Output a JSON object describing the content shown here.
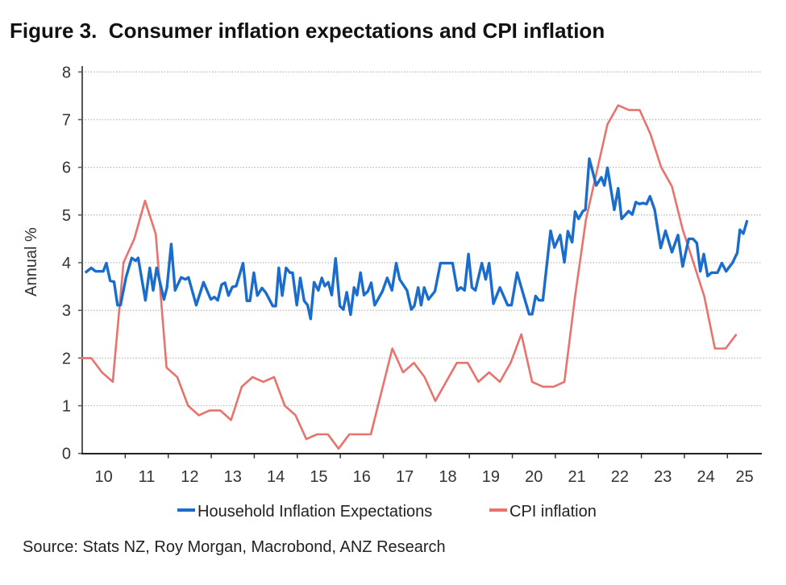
{
  "chart_data": {
    "type": "line",
    "title": "Figure 3.  Consumer inflation expectations and CPI inflation",
    "xlabel": "",
    "ylabel": "Annual %",
    "xlim": [
      2010,
      2025.8
    ],
    "ylim": [
      0,
      8
    ],
    "yticks": [
      0,
      1,
      2,
      3,
      4,
      5,
      6,
      7,
      8
    ],
    "xtick_labels": [
      "10",
      "11",
      "12",
      "13",
      "14",
      "15",
      "16",
      "17",
      "18",
      "19",
      "20",
      "21",
      "22",
      "23",
      "24",
      "25"
    ],
    "grid": "horizontal dotted",
    "legend_position": "bottom",
    "source": "Source: Stats NZ, Roy Morgan, Macrobond, ANZ Research",
    "series": [
      {
        "name": "Household Inflation Expectations",
        "color": "#1a6dcc",
        "points": [
          [
            2010.07,
            3.79
          ],
          [
            2010.21,
            3.89
          ],
          [
            2010.31,
            3.82
          ],
          [
            2010.49,
            3.82
          ],
          [
            2010.56,
            3.99
          ],
          [
            2010.65,
            3.62
          ],
          [
            2010.74,
            3.6
          ],
          [
            2010.82,
            3.11
          ],
          [
            2010.89,
            3.11
          ],
          [
            2011.02,
            3.7
          ],
          [
            2011.15,
            4.1
          ],
          [
            2011.24,
            4.04
          ],
          [
            2011.3,
            4.1
          ],
          [
            2011.47,
            3.21
          ],
          [
            2011.57,
            3.89
          ],
          [
            2011.65,
            3.42
          ],
          [
            2011.73,
            3.89
          ],
          [
            2011.9,
            3.23
          ],
          [
            2011.97,
            3.48
          ],
          [
            2012.07,
            4.39
          ],
          [
            2012.16,
            3.42
          ],
          [
            2012.3,
            3.69
          ],
          [
            2012.4,
            3.65
          ],
          [
            2012.47,
            3.69
          ],
          [
            2012.65,
            3.11
          ],
          [
            2012.82,
            3.59
          ],
          [
            2012.99,
            3.23
          ],
          [
            2013.07,
            3.28
          ],
          [
            2013.15,
            3.21
          ],
          [
            2013.24,
            3.54
          ],
          [
            2013.32,
            3.58
          ],
          [
            2013.4,
            3.31
          ],
          [
            2013.49,
            3.49
          ],
          [
            2013.58,
            3.51
          ],
          [
            2013.74,
            3.99
          ],
          [
            2013.83,
            3.2
          ],
          [
            2013.9,
            3.2
          ],
          [
            2013.99,
            3.79
          ],
          [
            2014.07,
            3.31
          ],
          [
            2014.18,
            3.47
          ],
          [
            2014.27,
            3.37
          ],
          [
            2014.43,
            3.09
          ],
          [
            2014.5,
            3.09
          ],
          [
            2014.57,
            3.89
          ],
          [
            2014.65,
            3.31
          ],
          [
            2014.74,
            3.89
          ],
          [
            2014.83,
            3.79
          ],
          [
            2014.89,
            3.79
          ],
          [
            2014.99,
            3.11
          ],
          [
            2015.07,
            3.68
          ],
          [
            2015.16,
            3.2
          ],
          [
            2015.24,
            3.11
          ],
          [
            2015.31,
            2.82
          ],
          [
            2015.39,
            3.59
          ],
          [
            2015.49,
            3.42
          ],
          [
            2015.57,
            3.68
          ],
          [
            2015.64,
            3.51
          ],
          [
            2015.72,
            3.59
          ],
          [
            2015.8,
            3.32
          ],
          [
            2015.89,
            4.09
          ],
          [
            2015.99,
            3.09
          ],
          [
            2016.07,
            3.02
          ],
          [
            2016.15,
            3.38
          ],
          [
            2016.24,
            2.91
          ],
          [
            2016.32,
            3.48
          ],
          [
            2016.39,
            3.32
          ],
          [
            2016.47,
            3.79
          ],
          [
            2016.55,
            3.32
          ],
          [
            2016.64,
            3.4
          ],
          [
            2016.72,
            3.58
          ],
          [
            2016.8,
            3.11
          ],
          [
            2016.98,
            3.4
          ],
          [
            2017.09,
            3.68
          ],
          [
            2017.2,
            3.42
          ],
          [
            2017.3,
            3.99
          ],
          [
            2017.38,
            3.65
          ],
          [
            2017.55,
            3.42
          ],
          [
            2017.65,
            3.02
          ],
          [
            2017.72,
            3.09
          ],
          [
            2017.81,
            3.48
          ],
          [
            2017.88,
            3.11
          ],
          [
            2017.95,
            3.48
          ],
          [
            2018.05,
            3.23
          ],
          [
            2018.2,
            3.4
          ],
          [
            2018.33,
            3.99
          ],
          [
            2018.61,
            3.99
          ],
          [
            2018.72,
            3.42
          ],
          [
            2018.8,
            3.48
          ],
          [
            2018.89,
            3.42
          ],
          [
            2018.98,
            4.18
          ],
          [
            2019.06,
            3.48
          ],
          [
            2019.14,
            3.42
          ],
          [
            2019.29,
            3.99
          ],
          [
            2019.38,
            3.65
          ],
          [
            2019.46,
            3.99
          ],
          [
            2019.56,
            3.14
          ],
          [
            2019.71,
            3.48
          ],
          [
            2019.89,
            3.11
          ],
          [
            2019.98,
            3.11
          ],
          [
            2020.11,
            3.79
          ],
          [
            2020.26,
            3.32
          ],
          [
            2020.39,
            2.92
          ],
          [
            2020.46,
            2.92
          ],
          [
            2020.54,
            3.3
          ],
          [
            2020.62,
            3.21
          ],
          [
            2020.71,
            3.21
          ],
          [
            2020.89,
            4.67
          ],
          [
            2020.98,
            4.32
          ],
          [
            2021.11,
            4.58
          ],
          [
            2021.21,
            4.01
          ],
          [
            2021.29,
            4.66
          ],
          [
            2021.39,
            4.43
          ],
          [
            2021.46,
            5.07
          ],
          [
            2021.54,
            4.92
          ],
          [
            2021.64,
            5.08
          ],
          [
            2021.7,
            5.11
          ],
          [
            2021.79,
            6.18
          ],
          [
            2021.95,
            5.62
          ],
          [
            2022.07,
            5.79
          ],
          [
            2022.14,
            5.62
          ],
          [
            2022.21,
            5.99
          ],
          [
            2022.37,
            5.11
          ],
          [
            2022.46,
            5.56
          ],
          [
            2022.54,
            4.92
          ],
          [
            2022.7,
            5.08
          ],
          [
            2022.79,
            5.01
          ],
          [
            2022.87,
            5.27
          ],
          [
            2022.95,
            5.23
          ],
          [
            2023.04,
            5.25
          ],
          [
            2023.12,
            5.23
          ],
          [
            2023.2,
            5.39
          ],
          [
            2023.31,
            5.11
          ],
          [
            2023.45,
            4.31
          ],
          [
            2023.56,
            4.67
          ],
          [
            2023.71,
            4.22
          ],
          [
            2023.85,
            4.58
          ],
          [
            2023.96,
            3.92
          ],
          [
            2024.1,
            4.5
          ],
          [
            2024.2,
            4.5
          ],
          [
            2024.29,
            4.41
          ],
          [
            2024.37,
            3.82
          ],
          [
            2024.45,
            4.18
          ],
          [
            2024.54,
            3.72
          ],
          [
            2024.63,
            3.79
          ],
          [
            2024.77,
            3.79
          ],
          [
            2024.87,
            3.99
          ],
          [
            2024.97,
            3.82
          ],
          [
            2025.12,
            4.0
          ],
          [
            2025.23,
            4.21
          ],
          [
            2025.29,
            4.69
          ],
          [
            2025.37,
            4.61
          ],
          [
            2025.46,
            4.89
          ]
        ]
      },
      {
        "name": "CPI inflation",
        "color": "#e8736c",
        "x_start": 2009.96,
        "x_step": 0.25,
        "values": [
          2.0,
          2.0,
          1.7,
          1.5,
          4.0,
          4.5,
          5.3,
          4.6,
          1.8,
          1.6,
          1.0,
          0.8,
          0.9,
          0.9,
          0.7,
          1.4,
          1.6,
          1.5,
          1.6,
          1.0,
          0.8,
          0.3,
          0.4,
          0.4,
          0.1,
          0.4,
          0.4,
          0.4,
          1.3,
          2.2,
          1.7,
          1.9,
          1.6,
          1.1,
          1.5,
          1.9,
          1.9,
          1.5,
          1.7,
          1.5,
          1.9,
          2.5,
          1.5,
          1.4,
          1.4,
          1.5,
          3.3,
          4.9,
          5.9,
          6.9,
          7.3,
          7.2,
          7.2,
          6.7,
          6.0,
          5.6,
          4.7,
          4.0,
          3.3,
          2.2,
          2.2,
          2.5
        ]
      }
    ]
  }
}
